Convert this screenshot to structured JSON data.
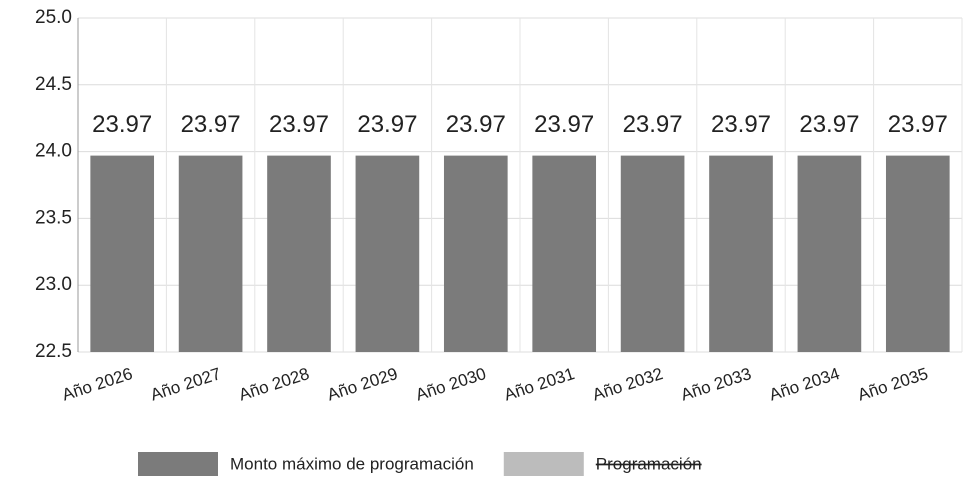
{
  "chart_data": {
    "type": "bar",
    "categories": [
      "Año 2026",
      "Año 2027",
      "Año 2028",
      "Año 2029",
      "Año 2030",
      "Año 2031",
      "Año 2032",
      "Año 2033",
      "Año 2034",
      "Año 2035"
    ],
    "series": [
      {
        "name": "Monto máximo de programación",
        "color": "#7b7b7b",
        "values": [
          23.97,
          23.97,
          23.97,
          23.97,
          23.97,
          23.97,
          23.97,
          23.97,
          23.97,
          23.97
        ]
      },
      {
        "name": "Programación",
        "color": "#bcbcbc",
        "hidden": true
      }
    ],
    "ylim": [
      22.5,
      25.0
    ],
    "yticks": [
      22.5,
      {
        "value": 23.0,
        "label": "23.0"
      },
      23.5,
      {
        "value": 24.0,
        "label": "24.0"
      },
      24.5,
      {
        "value": 25.0,
        "label": "25.0"
      }
    ],
    "grid": true
  }
}
